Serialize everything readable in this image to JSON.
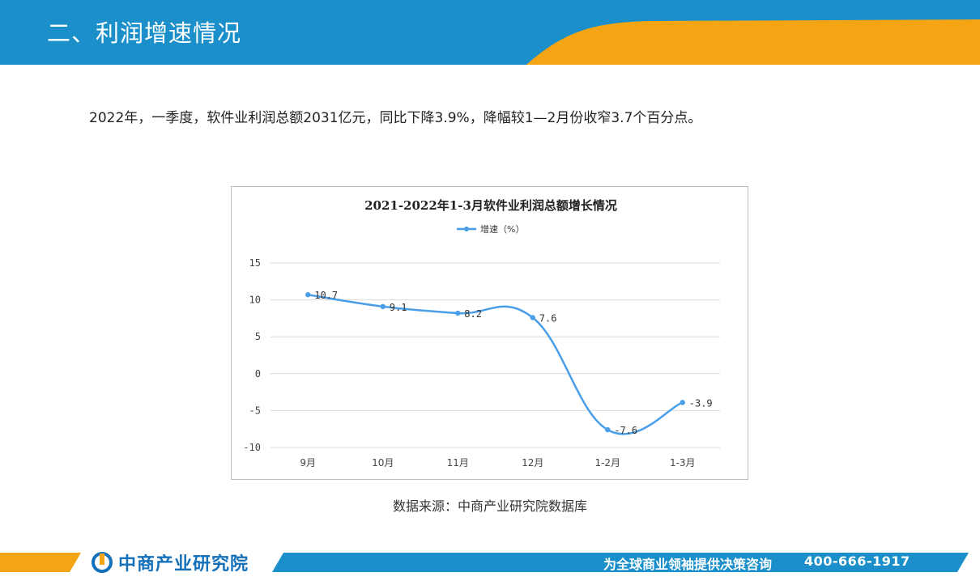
{
  "header": {
    "title": "二、利润增速情况"
  },
  "summary": "2022年，一季度，软件业利润总额2031亿元，同比下降3.9%，降幅较1—2月份收窄3.7个百分点。",
  "chart_data": {
    "type": "line",
    "title": "2021-2022年1-3月软件业利润总额增长情况",
    "categories": [
      "9月",
      "10月",
      "11月",
      "12月",
      "1-2月",
      "1-3月"
    ],
    "series": [
      {
        "name": "增速（%）",
        "values": [
          10.7,
          9.1,
          8.2,
          7.6,
          -7.6,
          -3.9
        ],
        "color": "#4a9ee8"
      }
    ],
    "data_labels": [
      "10.7",
      "9.1",
      "8.2",
      "7.6",
      "-7.6",
      "-3.9"
    ],
    "ylim": [
      -10,
      15
    ],
    "yticks": [
      15,
      10,
      5,
      0,
      -5,
      -10
    ],
    "grid": true,
    "legend_position": "top"
  },
  "source": "数据来源：中商产业研究院数据库",
  "footer": {
    "logo_text": "中商产业研究院",
    "slogan": "为全球商业领袖提供决策咨询",
    "phone": "400-666-1917"
  },
  "colors": {
    "header_blue": "#1a8fc9",
    "accent_orange": "#f5a414",
    "footer_blue": "#1a8fc9",
    "logo_blue": "#1470b8"
  }
}
